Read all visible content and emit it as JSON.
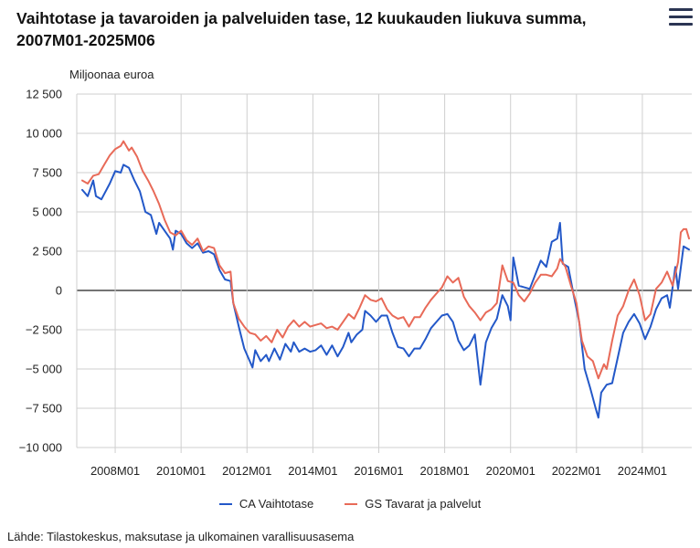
{
  "header": {
    "title": "Vaihtotase ja tavaroiden ja palveluiden tase, 12 kuukauden liukuva summa, 2007M01-2025M06",
    "menu_icon": "hamburger-menu-icon"
  },
  "footer": {
    "source": "Lähde: Tilastokeskus, maksutase ja ulkomainen varallisuusasema"
  },
  "chart_data": {
    "type": "line",
    "title": "Vaihtotase ja tavaroiden ja palveluiden tase, 12 kuukauden liukuva summa, 2007M01-2025M06",
    "ylabel": "Miljoonaa euroa",
    "xlabel": "",
    "ylim": [
      -10000,
      12500
    ],
    "yticks": [
      12500,
      10000,
      7500,
      5000,
      2500,
      0,
      -2500,
      -5000,
      -7500,
      -10000
    ],
    "ytick_labels": [
      "12 500",
      "10 000",
      "7 500",
      "5 000",
      "2 500",
      "0",
      "−2 500",
      "−5 000",
      "−7 500",
      "−10 000"
    ],
    "xlim": [
      "2007M01",
      "2025M06"
    ],
    "xtick_labels": [
      "2008M01",
      "2010M01",
      "2012M01",
      "2014M01",
      "2016M01",
      "2018M01",
      "2020M01",
      "2022M01",
      "2024M01"
    ],
    "grid": "vertical-and-horizontal",
    "legend_position": "bottom",
    "series": [
      {
        "name": "CA Vaihtotase",
        "color": "#2358c8",
        "points": [
          [
            "2007M01",
            6400
          ],
          [
            "2007M03",
            6000
          ],
          [
            "2007M05",
            7000
          ],
          [
            "2007M06",
            6000
          ],
          [
            "2007M08",
            5800
          ],
          [
            "2007M11",
            6800
          ],
          [
            "2008M01",
            7600
          ],
          [
            "2008M03",
            7500
          ],
          [
            "2008M04",
            8000
          ],
          [
            "2008M06",
            7800
          ],
          [
            "2008M08",
            7000
          ],
          [
            "2008M10",
            6300
          ],
          [
            "2008M12",
            5000
          ],
          [
            "2009M02",
            4800
          ],
          [
            "2009M04",
            3600
          ],
          [
            "2009M05",
            4300
          ],
          [
            "2009M07",
            3800
          ],
          [
            "2009M09",
            3300
          ],
          [
            "2009M10",
            2600
          ],
          [
            "2009M11",
            3800
          ],
          [
            "2010M01",
            3600
          ],
          [
            "2010M03",
            3000
          ],
          [
            "2010M05",
            2700
          ],
          [
            "2010M07",
            3000
          ],
          [
            "2010M09",
            2400
          ],
          [
            "2010M11",
            2500
          ],
          [
            "2011M01",
            2300
          ],
          [
            "2011M03",
            1300
          ],
          [
            "2011M05",
            700
          ],
          [
            "2011M07",
            600
          ],
          [
            "2011M08",
            -800
          ],
          [
            "2011M10",
            -2300
          ],
          [
            "2011M12",
            -3700
          ],
          [
            "2012M02",
            -4500
          ],
          [
            "2012M03",
            -4900
          ],
          [
            "2012M04",
            -3800
          ],
          [
            "2012M06",
            -4500
          ],
          [
            "2012M08",
            -4100
          ],
          [
            "2012M09",
            -4500
          ],
          [
            "2012M11",
            -3700
          ],
          [
            "2013M01",
            -4400
          ],
          [
            "2013M03",
            -3400
          ],
          [
            "2013M05",
            -3900
          ],
          [
            "2013M06",
            -3300
          ],
          [
            "2013M08",
            -3900
          ],
          [
            "2013M10",
            -3700
          ],
          [
            "2013M12",
            -3900
          ],
          [
            "2014M02",
            -3800
          ],
          [
            "2014M04",
            -3500
          ],
          [
            "2014M06",
            -4100
          ],
          [
            "2014M08",
            -3500
          ],
          [
            "2014M10",
            -4200
          ],
          [
            "2014M12",
            -3600
          ],
          [
            "2015M02",
            -2700
          ],
          [
            "2015M03",
            -3300
          ],
          [
            "2015M05",
            -2800
          ],
          [
            "2015M07",
            -2500
          ],
          [
            "2015M08",
            -1300
          ],
          [
            "2015M10",
            -1600
          ],
          [
            "2015M12",
            -2000
          ],
          [
            "2016M02",
            -1600
          ],
          [
            "2016M04",
            -1600
          ],
          [
            "2016M06",
            -2700
          ],
          [
            "2016M08",
            -3600
          ],
          [
            "2016M10",
            -3700
          ],
          [
            "2016M12",
            -4200
          ],
          [
            "2017M02",
            -3700
          ],
          [
            "2017M04",
            -3700
          ],
          [
            "2017M06",
            -3100
          ],
          [
            "2017M08",
            -2400
          ],
          [
            "2017M10",
            -2000
          ],
          [
            "2017M12",
            -1600
          ],
          [
            "2018M02",
            -1500
          ],
          [
            "2018M04",
            -2000
          ],
          [
            "2018M06",
            -3200
          ],
          [
            "2018M08",
            -3800
          ],
          [
            "2018M10",
            -3500
          ],
          [
            "2018M12",
            -2800
          ],
          [
            "2019M02",
            -6000
          ],
          [
            "2019M04",
            -3300
          ],
          [
            "2019M06",
            -2400
          ],
          [
            "2019M08",
            -1800
          ],
          [
            "2019M10",
            -300
          ],
          [
            "2019M12",
            -1000
          ],
          [
            "2020M01",
            -1900
          ],
          [
            "2020M02",
            2100
          ],
          [
            "2020M04",
            300
          ],
          [
            "2020M06",
            200
          ],
          [
            "2020M08",
            100
          ],
          [
            "2020M10",
            1000
          ],
          [
            "2020M12",
            1900
          ],
          [
            "2021M02",
            1500
          ],
          [
            "2021M04",
            3100
          ],
          [
            "2021M06",
            3300
          ],
          [
            "2021M07",
            4300
          ],
          [
            "2021M08",
            1700
          ],
          [
            "2021M10",
            1500
          ],
          [
            "2021M12",
            -300
          ],
          [
            "2022M02",
            -2000
          ],
          [
            "2022M04",
            -5000
          ],
          [
            "2022M06",
            -6200
          ],
          [
            "2022M08",
            -7500
          ],
          [
            "2022M09",
            -8100
          ],
          [
            "2022M10",
            -6500
          ],
          [
            "2022M12",
            -6000
          ],
          [
            "2023M02",
            -5900
          ],
          [
            "2023M04",
            -4300
          ],
          [
            "2023M06",
            -2700
          ],
          [
            "2023M08",
            -2000
          ],
          [
            "2023M10",
            -1500
          ],
          [
            "2023M12",
            -2100
          ],
          [
            "2024M02",
            -3100
          ],
          [
            "2024M04",
            -2300
          ],
          [
            "2024M06",
            -1200
          ],
          [
            "2024M08",
            -500
          ],
          [
            "2024M10",
            -300
          ],
          [
            "2024M11",
            -1100
          ],
          [
            "2025M01",
            1500
          ],
          [
            "2025M02",
            100
          ],
          [
            "2025M04",
            2800
          ],
          [
            "2025M06",
            2600
          ]
        ]
      },
      {
        "name": "GS Tavarat ja palvelut",
        "color": "#e86a58",
        "points": [
          [
            "2007M01",
            7000
          ],
          [
            "2007M03",
            6800
          ],
          [
            "2007M05",
            7300
          ],
          [
            "2007M07",
            7400
          ],
          [
            "2007M09",
            8000
          ],
          [
            "2007M11",
            8600
          ],
          [
            "2008M01",
            9000
          ],
          [
            "2008M03",
            9200
          ],
          [
            "2008M04",
            9500
          ],
          [
            "2008M06",
            8900
          ],
          [
            "2008M07",
            9100
          ],
          [
            "2008M09",
            8500
          ],
          [
            "2008M11",
            7600
          ],
          [
            "2009M01",
            7000
          ],
          [
            "2009M03",
            6300
          ],
          [
            "2009M05",
            5500
          ],
          [
            "2009M07",
            4500
          ],
          [
            "2009M09",
            3700
          ],
          [
            "2009M11",
            3500
          ],
          [
            "2010M01",
            3800
          ],
          [
            "2010M03",
            3200
          ],
          [
            "2010M05",
            2900
          ],
          [
            "2010M07",
            3300
          ],
          [
            "2010M09",
            2500
          ],
          [
            "2010M11",
            2800
          ],
          [
            "2011M01",
            2700
          ],
          [
            "2011M03",
            1600
          ],
          [
            "2011M05",
            1100
          ],
          [
            "2011M07",
            1200
          ],
          [
            "2011M08",
            -800
          ],
          [
            "2011M10",
            -1800
          ],
          [
            "2011M12",
            -2300
          ],
          [
            "2012M02",
            -2700
          ],
          [
            "2012M04",
            -2800
          ],
          [
            "2012M06",
            -3200
          ],
          [
            "2012M08",
            -2900
          ],
          [
            "2012M10",
            -3300
          ],
          [
            "2012M12",
            -2500
          ],
          [
            "2013M02",
            -3000
          ],
          [
            "2013M04",
            -2300
          ],
          [
            "2013M06",
            -1900
          ],
          [
            "2013M08",
            -2300
          ],
          [
            "2013M10",
            -2000
          ],
          [
            "2013M12",
            -2300
          ],
          [
            "2014M02",
            -2200
          ],
          [
            "2014M04",
            -2100
          ],
          [
            "2014M06",
            -2400
          ],
          [
            "2014M08",
            -2300
          ],
          [
            "2014M10",
            -2500
          ],
          [
            "2014M12",
            -2000
          ],
          [
            "2015M02",
            -1500
          ],
          [
            "2015M04",
            -1800
          ],
          [
            "2015M06",
            -1100
          ],
          [
            "2015M08",
            -300
          ],
          [
            "2015M10",
            -600
          ],
          [
            "2015M12",
            -700
          ],
          [
            "2016M02",
            -500
          ],
          [
            "2016M04",
            -1200
          ],
          [
            "2016M06",
            -1600
          ],
          [
            "2016M08",
            -1800
          ],
          [
            "2016M10",
            -1700
          ],
          [
            "2016M12",
            -2300
          ],
          [
            "2017M02",
            -1700
          ],
          [
            "2017M04",
            -1700
          ],
          [
            "2017M06",
            -1100
          ],
          [
            "2017M08",
            -600
          ],
          [
            "2017M10",
            -200
          ],
          [
            "2017M12",
            200
          ],
          [
            "2018M02",
            900
          ],
          [
            "2018M04",
            500
          ],
          [
            "2018M06",
            800
          ],
          [
            "2018M08",
            -400
          ],
          [
            "2018M10",
            -1000
          ],
          [
            "2018M12",
            -1400
          ],
          [
            "2019M02",
            -1900
          ],
          [
            "2019M04",
            -1400
          ],
          [
            "2019M06",
            -1200
          ],
          [
            "2019M08",
            -800
          ],
          [
            "2019M10",
            1600
          ],
          [
            "2019M12",
            600
          ],
          [
            "2020M02",
            500
          ],
          [
            "2020M04",
            -300
          ],
          [
            "2020M06",
            -700
          ],
          [
            "2020M08",
            -200
          ],
          [
            "2020M10",
            500
          ],
          [
            "2020M12",
            1000
          ],
          [
            "2021M02",
            1000
          ],
          [
            "2021M04",
            900
          ],
          [
            "2021M06",
            1400
          ],
          [
            "2021M07",
            2000
          ],
          [
            "2021M09",
            1500
          ],
          [
            "2021M11",
            300
          ],
          [
            "2022M01",
            -800
          ],
          [
            "2022M03",
            -3200
          ],
          [
            "2022M05",
            -4200
          ],
          [
            "2022M07",
            -4500
          ],
          [
            "2022M09",
            -5600
          ],
          [
            "2022M11",
            -4700
          ],
          [
            "2022M12",
            -5000
          ],
          [
            "2023M02",
            -3200
          ],
          [
            "2023M04",
            -1600
          ],
          [
            "2023M06",
            -1000
          ],
          [
            "2023M08",
            0
          ],
          [
            "2023M10",
            700
          ],
          [
            "2023M12",
            -300
          ],
          [
            "2024M02",
            -1900
          ],
          [
            "2024M04",
            -1500
          ],
          [
            "2024M06",
            100
          ],
          [
            "2024M08",
            500
          ],
          [
            "2024M10",
            1200
          ],
          [
            "2024M12",
            300
          ],
          [
            "2025M02",
            1800
          ],
          [
            "2025M03",
            3700
          ],
          [
            "2025M04",
            3900
          ],
          [
            "2025M05",
            3900
          ],
          [
            "2025M06",
            3300
          ]
        ]
      }
    ]
  }
}
